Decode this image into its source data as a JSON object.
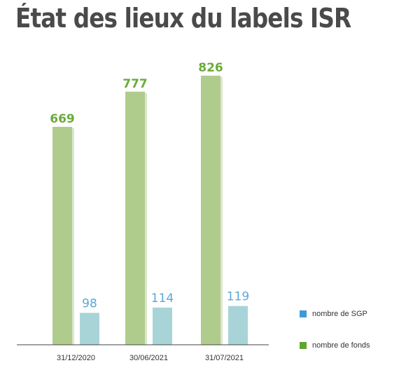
{
  "chart_data": {
    "type": "bar",
    "title": "État des lieux du labels ISR",
    "categories": [
      "31/12/2020",
      "30/06/2021",
      "31/07/2021"
    ],
    "series": [
      {
        "name": "nombre de fonds",
        "values": [
          669,
          777,
          826
        ]
      },
      {
        "name": "nombre de SGP",
        "values": [
          98,
          114,
          119
        ]
      }
    ],
    "ylim": [
      0,
      900
    ],
    "grid": false,
    "legend_position": "bottom-right"
  },
  "colors": {
    "fonds_bar": "#b0cc8d",
    "fonds_shadow": "#dbe6cd",
    "fonds_label": "#6aab39",
    "sgp_bar": "#a8d4d8",
    "sgp_label": "#5aa8d8",
    "legend_sgp": "#3d9ad6",
    "legend_fonds": "#5ea52e",
    "axis": "#444444",
    "title": "#4a4a4a"
  }
}
